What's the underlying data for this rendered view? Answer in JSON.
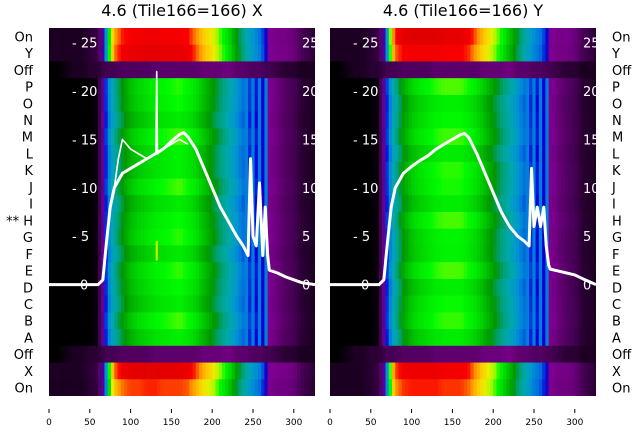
{
  "chart_data": [
    {
      "type": "heatmap",
      "title": "4.6 (Tile166=166) X",
      "row_labels": [
        "On",
        "Y",
        "Off",
        "P",
        "O",
        "N",
        "M",
        "L",
        "K",
        "J",
        "I",
        "** H",
        "G",
        "F",
        "E",
        "D",
        "C",
        "B",
        "A",
        "Off",
        "X",
        "On"
      ],
      "row_kind": [
        "on",
        "on",
        "off",
        "d",
        "d",
        "d",
        "d",
        "d",
        "d",
        "d",
        "d",
        "d",
        "d",
        "d",
        "d",
        "d",
        "d",
        "d",
        "d",
        "off",
        "on",
        "on"
      ],
      "xlim": [
        0,
        326
      ],
      "xticks": [
        0,
        50,
        100,
        150,
        200,
        250,
        300
      ],
      "overlay_ylim": [
        -11.5,
        26.5
      ],
      "overlay_yticks": [
        0,
        5,
        10,
        15,
        20,
        25
      ],
      "profile_x": [
        0,
        10,
        20,
        30,
        40,
        50,
        60,
        65,
        70,
        75,
        80,
        90,
        100,
        110,
        120,
        130,
        140,
        150,
        160,
        170,
        180,
        190,
        200,
        210,
        220,
        230,
        240,
        250,
        260,
        265,
        270,
        280,
        290,
        300,
        310,
        326
      ],
      "profile_on": [
        0.02,
        0.02,
        0.02,
        0.02,
        0.02,
        0.03,
        0.04,
        0.1,
        0.3,
        0.65,
        0.78,
        0.84,
        0.86,
        0.86,
        0.87,
        0.87,
        0.86,
        0.86,
        0.86,
        0.85,
        0.8,
        0.74,
        0.7,
        0.62,
        0.55,
        0.45,
        0.36,
        0.3,
        0.25,
        0.2,
        0.1,
        0.09,
        0.09,
        0.08,
        0.05,
        0.03
      ],
      "profile_data": [
        0.0,
        0.0,
        0.0,
        0.0,
        0.0,
        0.0,
        0.01,
        0.1,
        0.22,
        0.3,
        0.36,
        0.44,
        0.5,
        0.53,
        0.55,
        0.57,
        0.58,
        0.59,
        0.6,
        0.58,
        0.55,
        0.5,
        0.45,
        0.4,
        0.35,
        0.3,
        0.24,
        0.21,
        0.2,
        0.18,
        0.1,
        0.08,
        0.06,
        0.05,
        0.03,
        0.02
      ],
      "profile_off": [
        0.0,
        0.0,
        0.01,
        0.02,
        0.02,
        0.03,
        0.03,
        0.04,
        0.05,
        0.05,
        0.05,
        0.06,
        0.06,
        0.06,
        0.06,
        0.07,
        0.07,
        0.07,
        0.07,
        0.07,
        0.07,
        0.08,
        0.08,
        0.08,
        0.09,
        0.07,
        0.07,
        0.06,
        0.06,
        0.05,
        0.05,
        0.04,
        0.03,
        0.03,
        0.02,
        0.02
      ],
      "lines": [
        {
          "name": "trace-main",
          "x": [
            0,
            60,
            66,
            70,
            75,
            80,
            90,
            100,
            110,
            120,
            130,
            140,
            150,
            160,
            165,
            170,
            180,
            190,
            200,
            210,
            220,
            230,
            238,
            244,
            247,
            250,
            254,
            258,
            262,
            265,
            268,
            270,
            280,
            290,
            300,
            310,
            326
          ],
          "y": [
            0,
            0,
            0.5,
            4,
            8,
            10,
            11.5,
            12,
            12.5,
            13,
            13.5,
            14,
            14.8,
            15.5,
            15.7,
            15.3,
            14,
            12,
            10,
            8,
            6.5,
            5,
            4,
            3,
            13,
            5,
            4,
            10.5,
            3,
            8,
            3,
            1.5,
            1.2,
            0.8,
            0.5,
            0.2,
            0
          ]
        },
        {
          "name": "trace-alt",
          "x": [
            80,
            85,
            90,
            95,
            100,
            110,
            120,
            130,
            131,
            132,
            133,
            140,
            150,
            160,
            170
          ],
          "y": [
            10,
            13,
            15,
            14.5,
            14,
            13.5,
            13,
            13.5,
            13.5,
            22,
            13.5,
            14,
            14.5,
            15,
            14.5
          ]
        }
      ],
      "marker": {
        "x": 132,
        "y": [
          2.5,
          4.5
        ],
        "color": "#e8f000"
      }
    },
    {
      "type": "heatmap",
      "title": "4.6 (Tile166=166) Y",
      "row_labels": [
        "On",
        "Y",
        "Off",
        "P",
        "O",
        "N",
        "M",
        "L",
        "K",
        "J",
        "I",
        "H",
        "G",
        "F",
        "E",
        "D",
        "C",
        "B",
        "A",
        "Off",
        "X",
        "On"
      ],
      "row_kind": [
        "on",
        "on",
        "off",
        "d",
        "d",
        "d",
        "d",
        "d",
        "d",
        "d",
        "d",
        "d",
        "d",
        "d",
        "d",
        "d",
        "d",
        "d",
        "d",
        "off",
        "on",
        "on"
      ],
      "xlim": [
        0,
        326
      ],
      "xticks": [
        0,
        50,
        100,
        150,
        200,
        250,
        300
      ],
      "overlay_ylim": [
        -11.5,
        26.5
      ],
      "overlay_yticks": [
        0,
        5,
        10,
        15,
        20,
        25
      ],
      "profile_x": [
        0,
        10,
        20,
        30,
        40,
        50,
        60,
        65,
        70,
        75,
        80,
        90,
        100,
        110,
        120,
        130,
        140,
        150,
        160,
        170,
        180,
        190,
        200,
        210,
        220,
        230,
        240,
        250,
        260,
        265,
        270,
        280,
        290,
        300,
        310,
        326
      ],
      "profile_on": [
        0.02,
        0.02,
        0.02,
        0.02,
        0.02,
        0.03,
        0.04,
        0.1,
        0.3,
        0.7,
        0.82,
        0.86,
        0.87,
        0.87,
        0.87,
        0.87,
        0.86,
        0.86,
        0.86,
        0.84,
        0.78,
        0.72,
        0.66,
        0.58,
        0.5,
        0.42,
        0.34,
        0.28,
        0.24,
        0.2,
        0.1,
        0.09,
        0.09,
        0.08,
        0.05,
        0.03
      ],
      "profile_data": [
        0.0,
        0.0,
        0.0,
        0.0,
        0.0,
        0.0,
        0.01,
        0.1,
        0.22,
        0.3,
        0.36,
        0.46,
        0.52,
        0.55,
        0.57,
        0.59,
        0.6,
        0.6,
        0.6,
        0.58,
        0.55,
        0.5,
        0.45,
        0.4,
        0.35,
        0.3,
        0.24,
        0.21,
        0.2,
        0.18,
        0.1,
        0.08,
        0.06,
        0.05,
        0.03,
        0.02
      ],
      "profile_off": [
        0.0,
        0.0,
        0.01,
        0.02,
        0.02,
        0.03,
        0.03,
        0.04,
        0.05,
        0.05,
        0.05,
        0.06,
        0.06,
        0.06,
        0.06,
        0.07,
        0.07,
        0.07,
        0.07,
        0.07,
        0.07,
        0.08,
        0.08,
        0.08,
        0.09,
        0.07,
        0.07,
        0.06,
        0.06,
        0.05,
        0.05,
        0.04,
        0.03,
        0.03,
        0.02,
        0.02
      ],
      "lines": [
        {
          "name": "trace-main",
          "x": [
            0,
            60,
            66,
            70,
            75,
            80,
            90,
            100,
            110,
            120,
            130,
            140,
            150,
            160,
            165,
            170,
            180,
            190,
            200,
            210,
            220,
            230,
            238,
            244,
            247,
            250,
            254,
            258,
            262,
            265,
            268,
            270,
            280,
            290,
            300,
            310,
            326
          ],
          "y": [
            0,
            0,
            0.5,
            4,
            8,
            10,
            11.5,
            12.2,
            12.8,
            13.3,
            14,
            14.5,
            15,
            15.5,
            15.6,
            15.2,
            13.5,
            11.5,
            9.5,
            7.5,
            6,
            5,
            4.5,
            4,
            12,
            6,
            8,
            6,
            8,
            4,
            2,
            1.6,
            1.4,
            1.2,
            1,
            0.6,
            0
          ]
        }
      ]
    }
  ]
}
